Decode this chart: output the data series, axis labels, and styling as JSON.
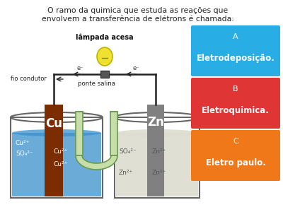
{
  "title_line1": "O ramo da quimica que estuda as reações que",
  "title_line2": "envolvem a transferência de elétrons é chamada:",
  "bg_color": "#ffffff",
  "option_A_color": "#28aee4",
  "option_B_color": "#e03535",
  "option_C_color": "#f07818",
  "option_A_label": "A",
  "option_B_label": "B",
  "option_C_label": "C",
  "option_A_text": "Eletrodeposição.",
  "option_B_text": "Eletroquimica.",
  "option_C_text": "Eletro paulo.",
  "cu_color": "#7B2D00",
  "zn_color": "#808080",
  "solution1_color": "#3a8fcc",
  "solution2_color": "#dcdcd0",
  "bridge_fill": "#c8dea8",
  "bridge_edge": "#6a9a50",
  "lamp_color": "#f0e030",
  "lamp_edge_color": "#b8b800",
  "lamp_base_color": "#555555",
  "wire_color": "#222222",
  "text_color": "#333333",
  "beaker_edge": "#666666"
}
